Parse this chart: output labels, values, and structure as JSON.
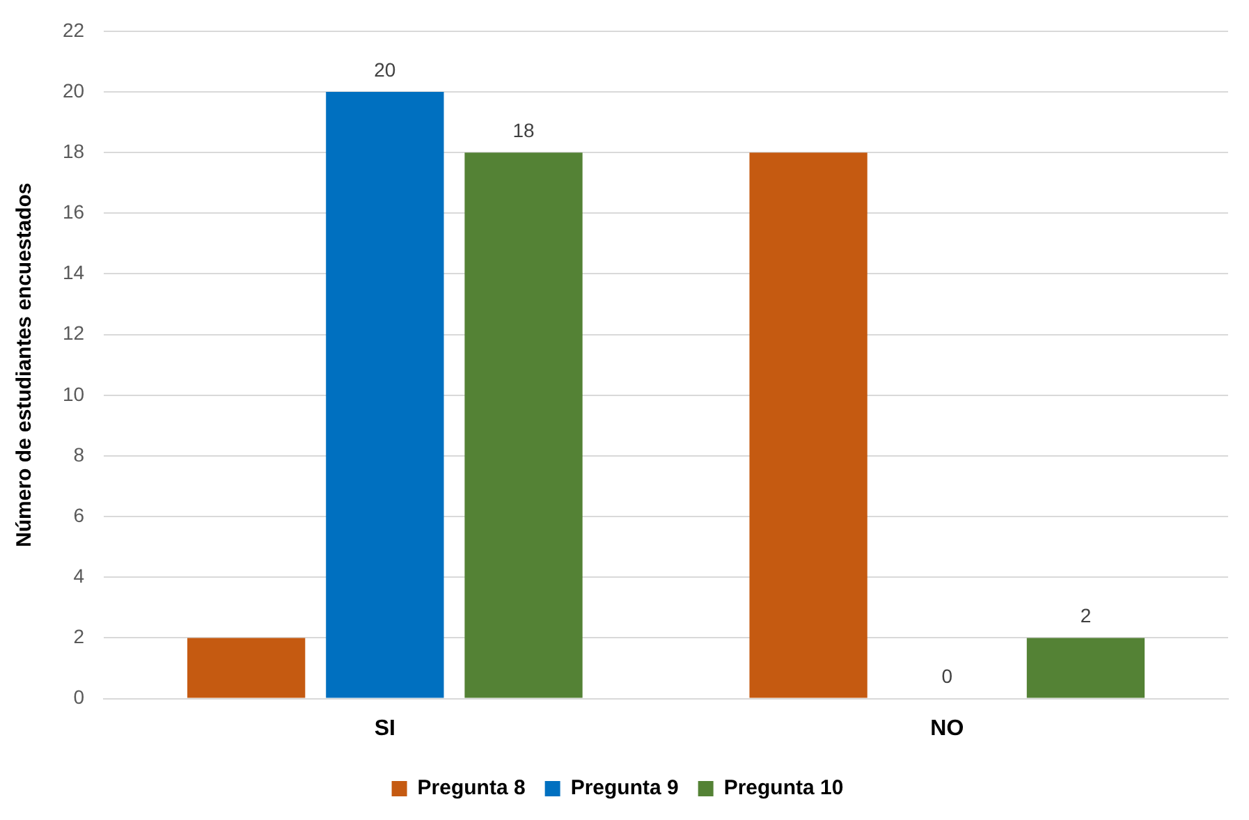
{
  "chart_data": {
    "type": "bar",
    "ylabel": "Número de estudiantes encuestados",
    "categories": [
      "SI",
      "NO"
    ],
    "series": [
      {
        "name": "Pregunta 8",
        "color": "#c55a11",
        "values": [
          2,
          18
        ]
      },
      {
        "name": "Pregunta 9",
        "color": "#0070c0",
        "values": [
          20,
          0
        ],
        "value_labels": [
          "20",
          "0"
        ]
      },
      {
        "name": "Pregunta 10",
        "color": "#548235",
        "values": [
          18,
          2
        ],
        "value_labels": [
          "18",
          "2"
        ]
      }
    ],
    "ylim": [
      0,
      22
    ],
    "yticks": [
      0,
      2,
      4,
      6,
      8,
      10,
      12,
      14,
      16,
      18,
      20,
      22
    ],
    "grid": "y",
    "legend": "bottom"
  }
}
